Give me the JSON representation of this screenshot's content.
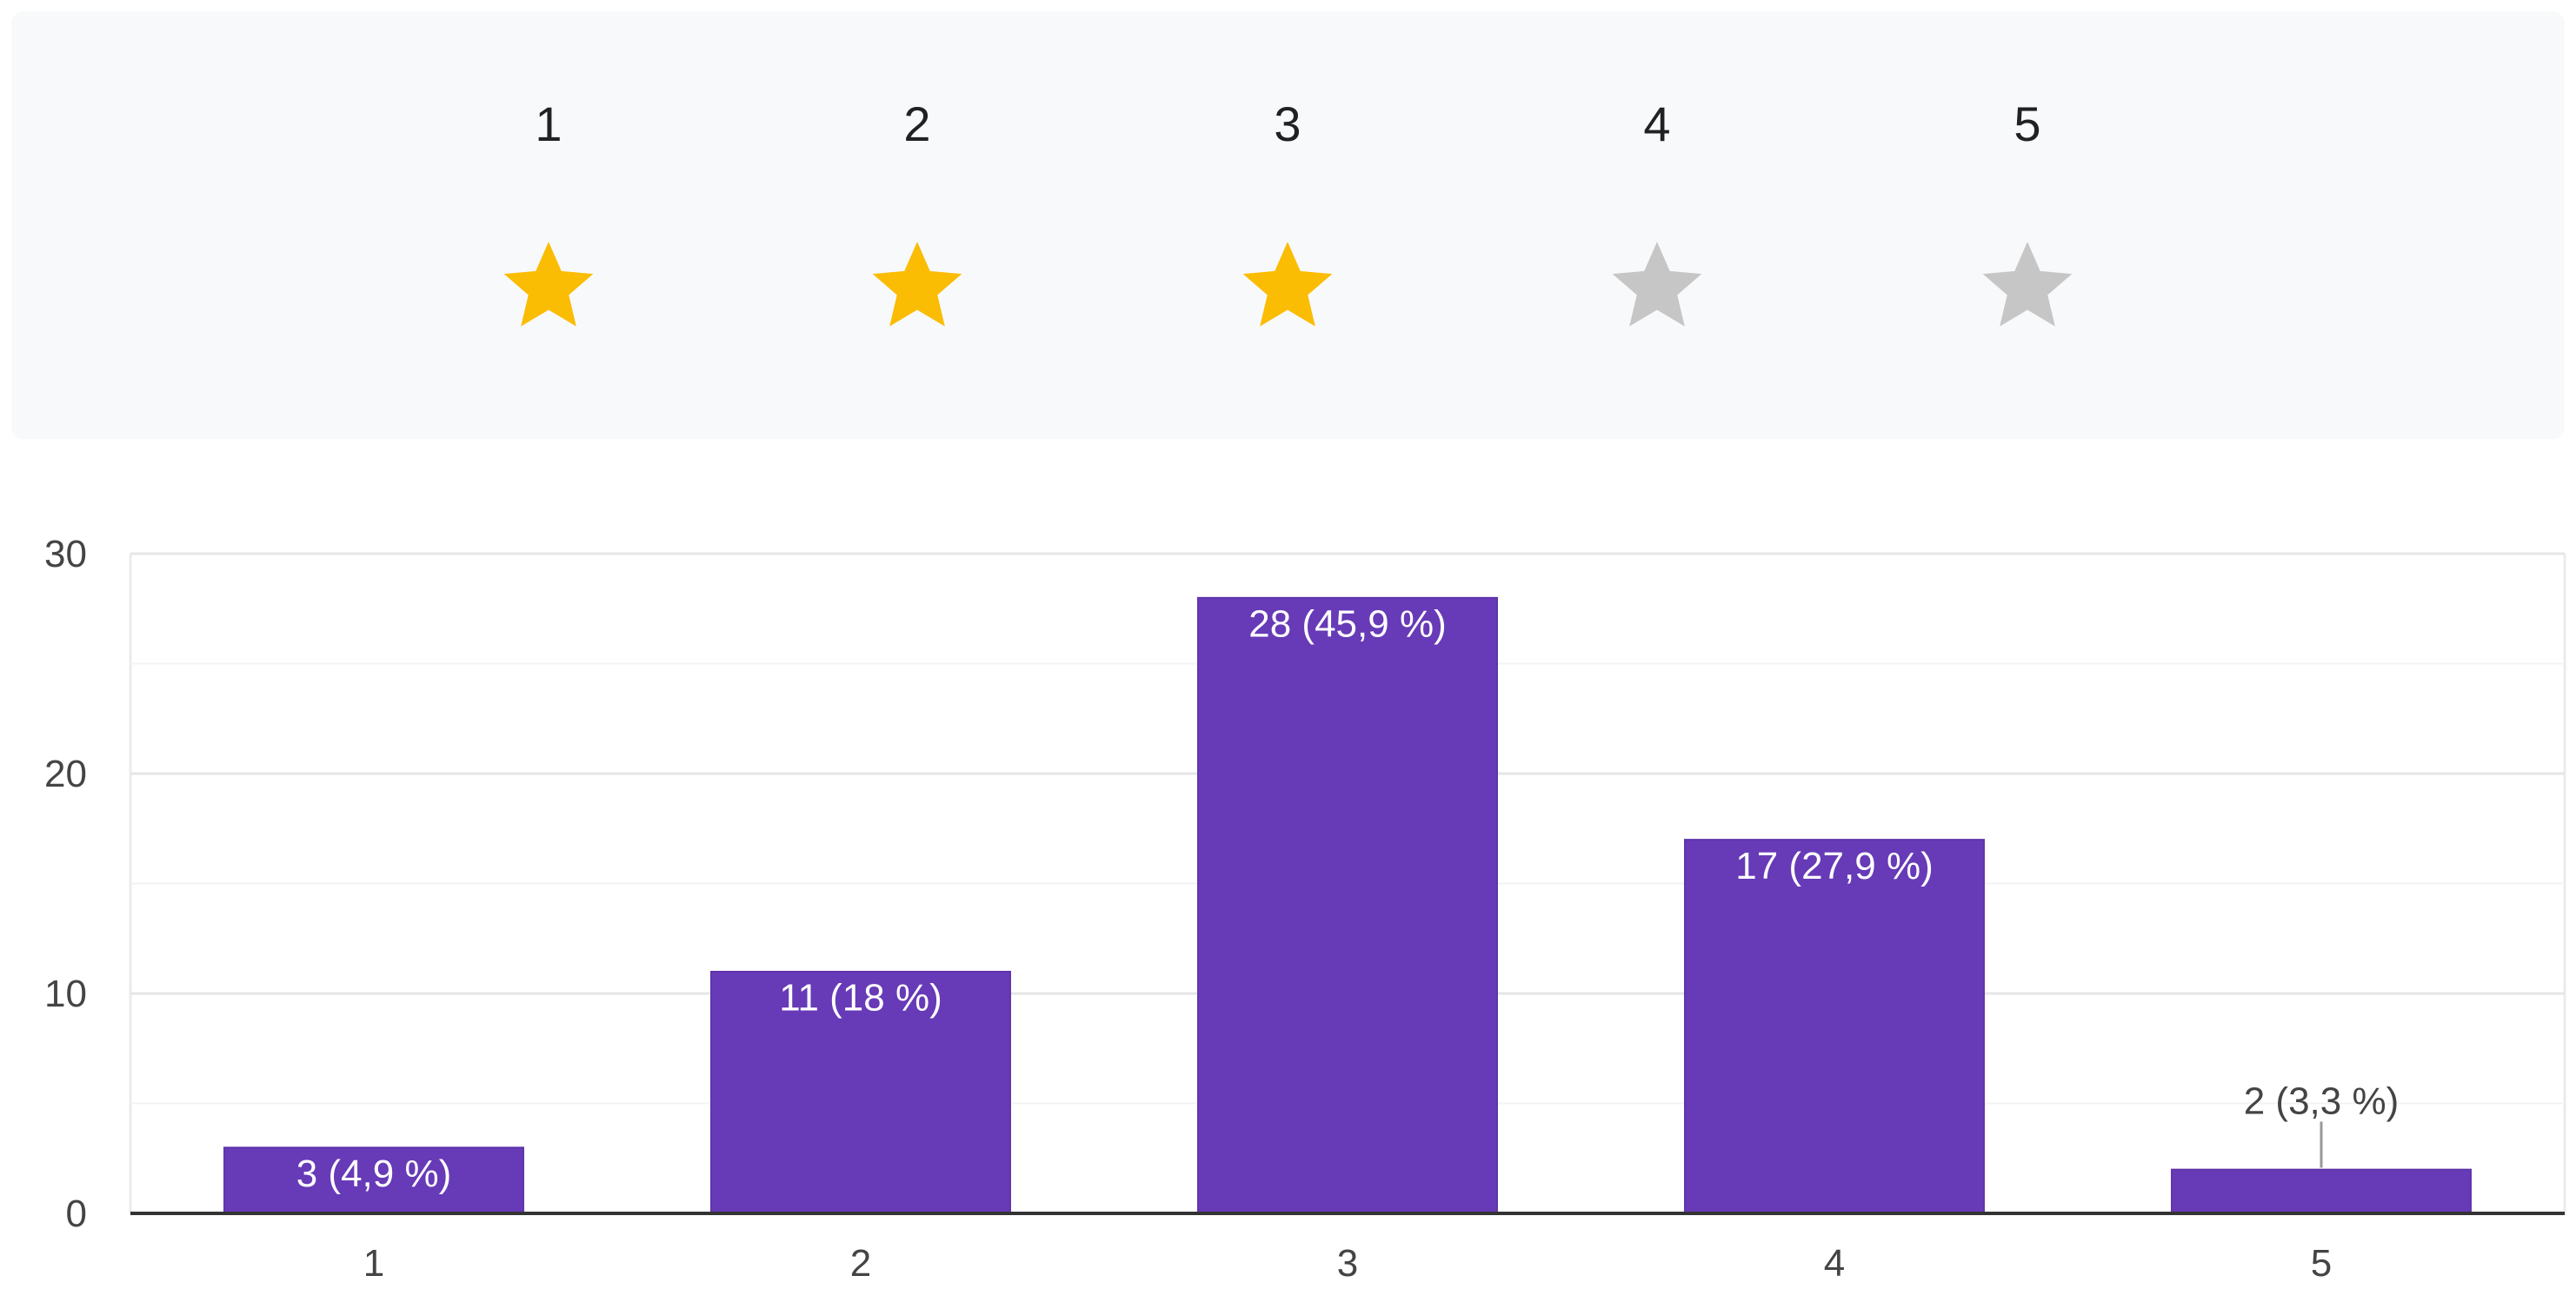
{
  "rating_scale": {
    "labels": [
      "1",
      "2",
      "3",
      "4",
      "5"
    ],
    "selected": 3,
    "filled_color": "#fbbc04",
    "empty_color": "#c6c6c6",
    "icon": "star-icon"
  },
  "chart_data": {
    "type": "bar",
    "categories": [
      "1",
      "2",
      "3",
      "4",
      "5"
    ],
    "values": [
      3,
      11,
      28,
      17,
      2
    ],
    "data_labels": [
      "3 (4,9 %)",
      "11 (18 %)",
      "28 (45,9 %)",
      "17 (27,9 %)",
      "2 (3,3 %)"
    ],
    "title": "",
    "xlabel": "",
    "ylabel": "",
    "ylim": [
      0,
      30
    ],
    "yticks": [
      0,
      10,
      20,
      30
    ],
    "grid": true,
    "bar_color": "#673ab7"
  }
}
